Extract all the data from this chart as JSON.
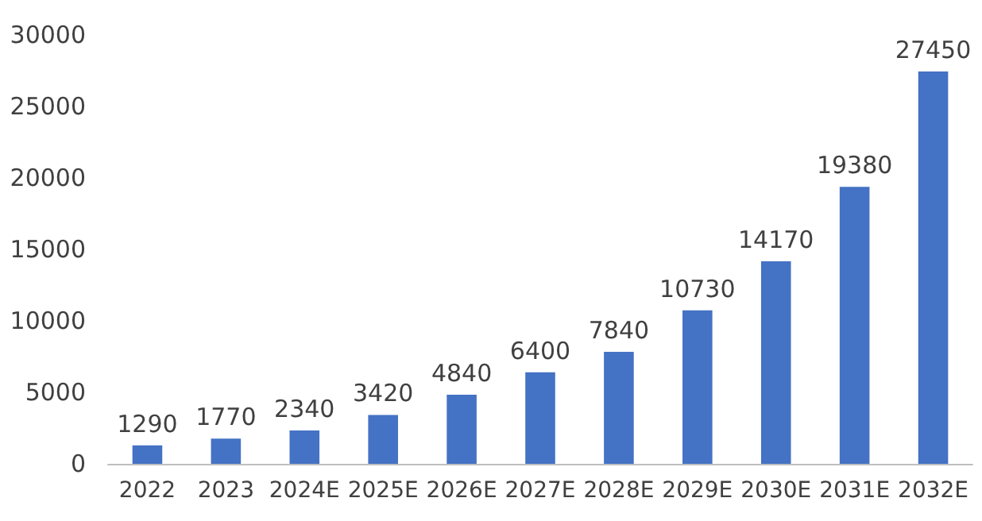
{
  "chart_data": {
    "type": "bar",
    "categories": [
      "2022",
      "2023",
      "2024E",
      "2025E",
      "2026E",
      "2027E",
      "2028E",
      "2029E",
      "2030E",
      "2031E",
      "2032E"
    ],
    "values": [
      1290,
      1770,
      2340,
      3420,
      4840,
      6400,
      7840,
      10730,
      14170,
      19380,
      27450
    ],
    "color": "#4472c4",
    "ylim": [
      0,
      30000
    ],
    "yticks": [
      0,
      5000,
      10000,
      15000,
      20000,
      25000,
      30000
    ],
    "grid": false,
    "data_labels": true
  }
}
